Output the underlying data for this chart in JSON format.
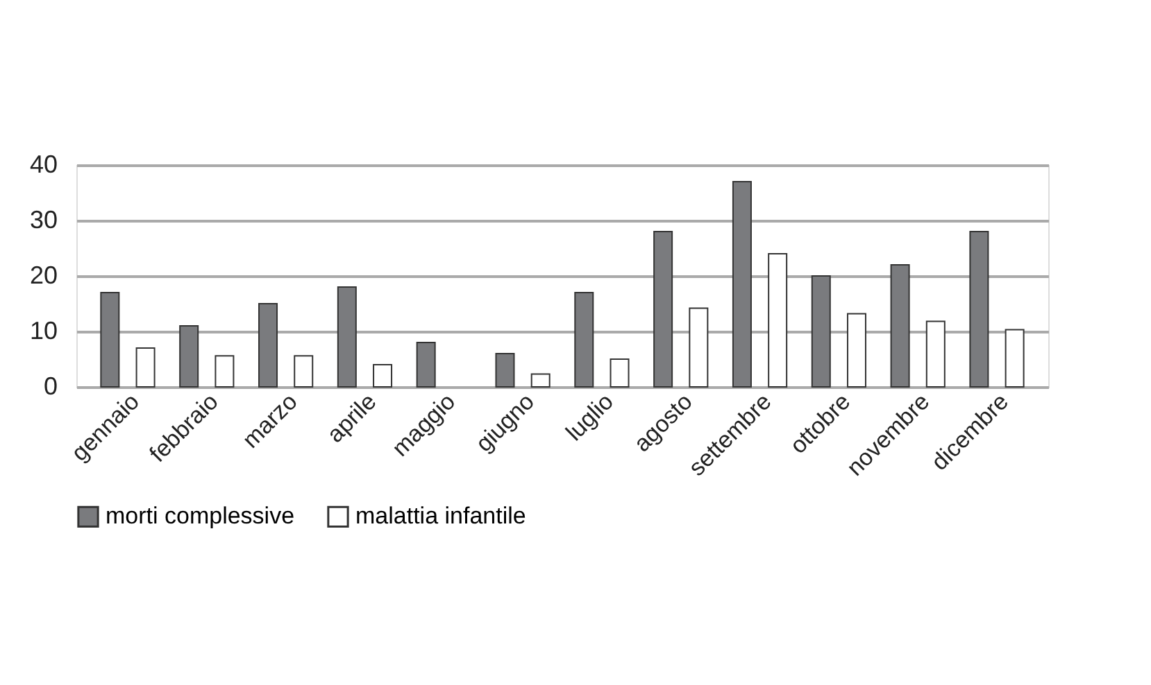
{
  "chart_data": {
    "type": "bar",
    "categories": [
      "gennaio",
      "febbraio",
      "marzo",
      "aprile",
      "maggio",
      "giugno",
      "luglio",
      "agosto",
      "settembre",
      "ottobre",
      "novembre",
      "dicembre"
    ],
    "series": [
      {
        "name": "morti complessive",
        "color": "#7a7b7e",
        "values": [
          17,
          11,
          15,
          18,
          8,
          6,
          17,
          28,
          37,
          20,
          22,
          28
        ]
      },
      {
        "name": "malattia infantile",
        "color": "#ffffff",
        "values": [
          7,
          5.6,
          5.6,
          4,
          null,
          2.3,
          5,
          14.2,
          24,
          13.2,
          11.8,
          10.3
        ]
      }
    ],
    "ylim": [
      0,
      40
    ],
    "yticks": [
      0,
      10,
      20,
      30,
      40
    ],
    "grid": "y",
    "legend": "bottom"
  }
}
